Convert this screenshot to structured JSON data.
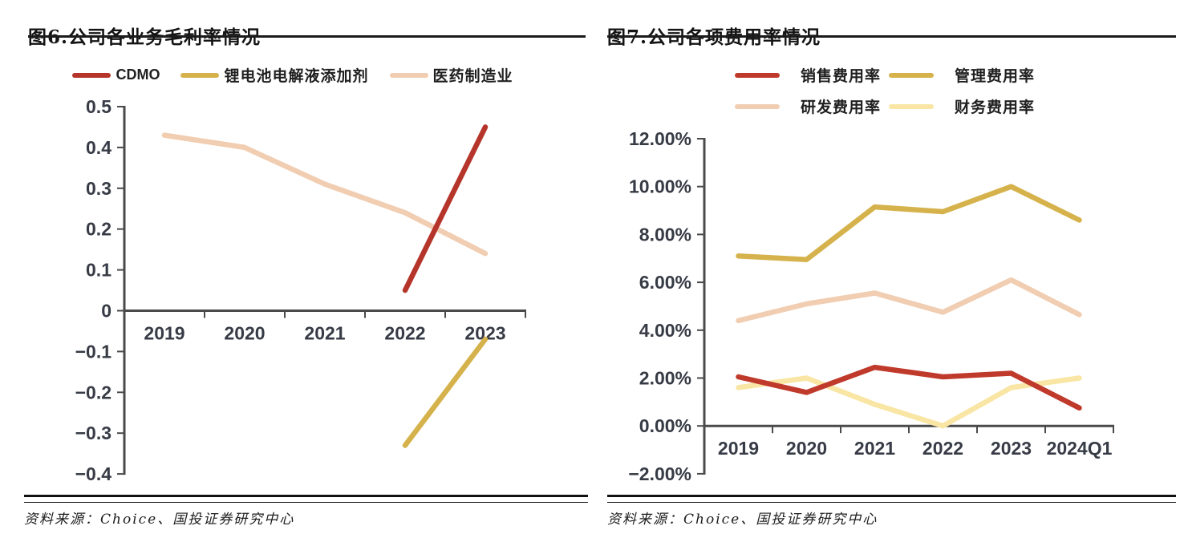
{
  "left": {
    "title": "图6.公司各业务毛利率情况",
    "source": "资料来源：Choice、国投证券研究中心"
  },
  "right": {
    "title": "图7.公司各项费用率情况",
    "source": "资料来源：Choice、国投证券研究中心"
  },
  "colors": {
    "axis": "#4a4a4a",
    "tick_label": "#363b45",
    "title_text": "#141414",
    "rule": "#1b1b1b",
    "cdmo_red": "#b5352b",
    "sales_red": "#c03a2c",
    "gold": "#d5b24b",
    "pink": "#f1cdb1",
    "light_yellow": "#f9e6a4"
  },
  "chart_data": [
    {
      "type": "line",
      "title": "图6.公司各业务毛利率情况",
      "categories": [
        "2019",
        "2020",
        "2021",
        "2022",
        "2023"
      ],
      "series": [
        {
          "name": "CDMO",
          "color": "#b5352b",
          "values": [
            null,
            null,
            null,
            0.05,
            0.45
          ]
        },
        {
          "name": "锂电池电解液添加剂",
          "color": "#d5b24b",
          "values": [
            null,
            null,
            null,
            -0.33,
            -0.07
          ]
        },
        {
          "name": "医药制造业",
          "color": "#f1cdb1",
          "values": [
            0.43,
            0.4,
            0.31,
            0.24,
            0.14
          ]
        }
      ],
      "ylim": [
        -0.4,
        0.5
      ],
      "ytick_step": 0.1,
      "ytick_labels": [
        "0.5",
        "0.4",
        "0.3",
        "0.2",
        "0.1",
        "0",
        "−0.1",
        "−0.2",
        "−0.3",
        "−0.4"
      ],
      "xlabel": "",
      "ylabel": "",
      "grid": false,
      "legend_position": "top"
    },
    {
      "type": "line",
      "title": "图7.公司各项费用率情况",
      "categories": [
        "2019",
        "2020",
        "2021",
        "2022",
        "2023",
        "2024Q1"
      ],
      "series": [
        {
          "name": "销售费用率",
          "color": "#c03a2c",
          "values": [
            2.05,
            1.4,
            2.45,
            2.05,
            2.2,
            0.75
          ]
        },
        {
          "name": "管理费用率",
          "color": "#d5b24b",
          "values": [
            7.1,
            6.95,
            9.15,
            8.95,
            10.0,
            8.6
          ]
        },
        {
          "name": "研发费用率",
          "color": "#f1cdb1",
          "values": [
            4.4,
            5.1,
            5.55,
            4.75,
            6.1,
            4.65
          ]
        },
        {
          "name": "财务费用率",
          "color": "#f9e6a4",
          "values": [
            1.6,
            2.0,
            0.9,
            0.0,
            1.6,
            2.0
          ]
        }
      ],
      "ylim": [
        -2.0,
        12.0
      ],
      "ytick_step": 2.0,
      "ytick_labels": [
        "12.00%",
        "10.00%",
        "8.00%",
        "6.00%",
        "4.00%",
        "2.00%",
        "0.00%",
        "−2.00%"
      ],
      "xlabel": "",
      "ylabel": "",
      "grid": false,
      "legend_position": "top"
    }
  ]
}
